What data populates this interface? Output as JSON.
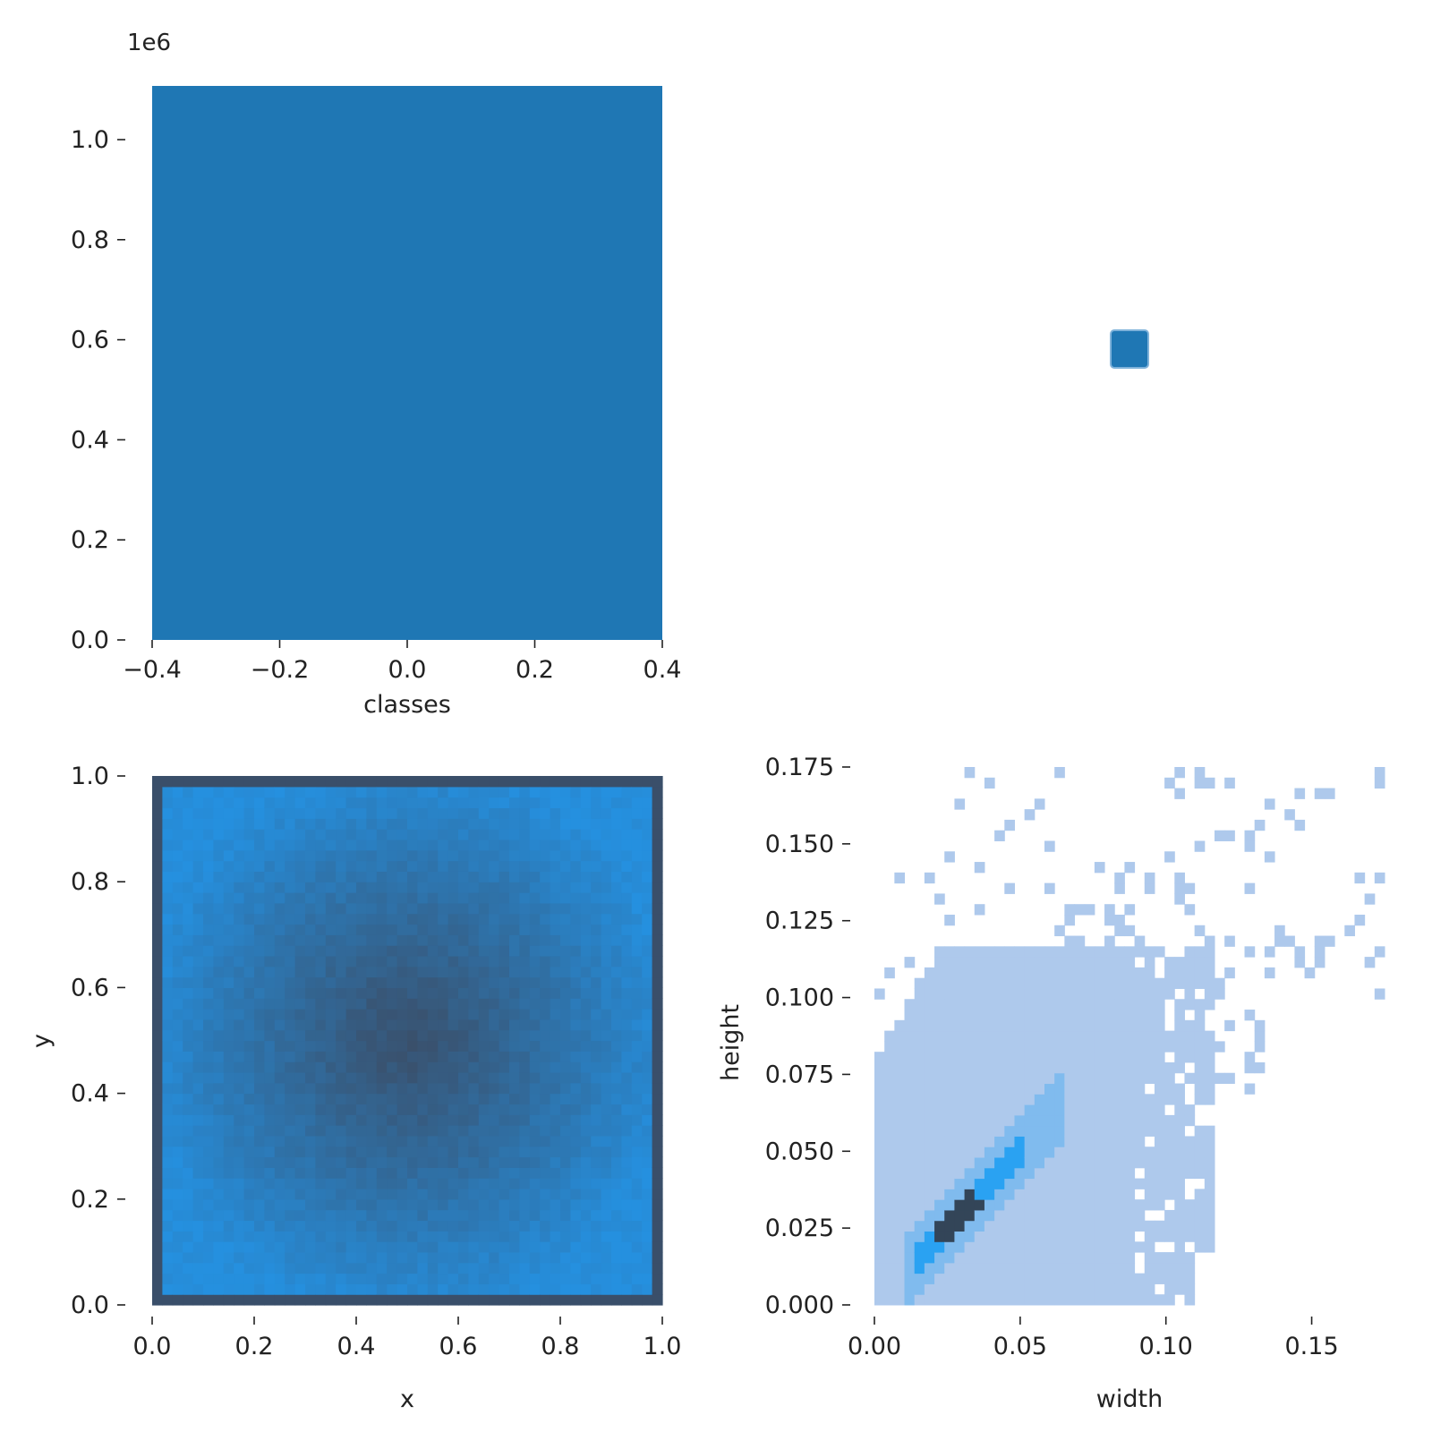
{
  "chart_data": [
    {
      "type": "bar",
      "panel": "top-left",
      "xlabel": "classes",
      "ylabel": "",
      "xlim": [
        -0.4,
        0.4
      ],
      "ylim": [
        0,
        1.1
      ],
      "offset_label": "1e6",
      "categories": [
        0
      ],
      "values": [
        1.1
      ],
      "xticks": [
        "−0.4",
        "−0.2",
        "0.0",
        "0.2",
        "0.4"
      ],
      "yticks": [
        "0.0",
        "0.2",
        "0.4",
        "0.6",
        "0.8",
        "1.0"
      ]
    },
    {
      "type": "scatter",
      "panel": "top-right",
      "xlabel": "",
      "ylabel": "",
      "x": [
        0.5
      ],
      "y": [
        0.5
      ],
      "marker": "square",
      "axes_visible": false
    },
    {
      "type": "heatmap",
      "panel": "bottom-left",
      "xlabel": "x",
      "ylabel": "y",
      "xlim": [
        0,
        1
      ],
      "ylim": [
        0,
        1
      ],
      "xticks": [
        "0.0",
        "0.2",
        "0.4",
        "0.6",
        "0.8",
        "1.0"
      ],
      "yticks": [
        "0.0",
        "0.2",
        "0.4",
        "0.6",
        "0.8",
        "1.0"
      ],
      "bins": 50,
      "pattern": "density highest at centre (0.5, 0.5) and along the borders, lower toward the four quadrants"
    },
    {
      "type": "heatmap",
      "panel": "bottom-right",
      "xlabel": "width",
      "ylabel": "height",
      "xlim": [
        0,
        0.175
      ],
      "ylim": [
        0,
        0.175
      ],
      "xticks": [
        "0.00",
        "0.05",
        "0.10",
        "0.15"
      ],
      "yticks": [
        "0.000",
        "0.025",
        "0.050",
        "0.075",
        "0.100",
        "0.125",
        "0.150",
        "0.175"
      ],
      "peak": {
        "width": 0.028,
        "height": 0.028
      },
      "pattern": "dense diagonal ridge from (0.01, 0.01) to (0.05, 0.05); sparse cells up to width 0.175 and height 0.175"
    }
  ],
  "colors": {
    "bar": "#1f77b4",
    "heat_dark": "#3a4f6a",
    "heat_bright": "#2590df",
    "heat_light": "#aec9ec",
    "heat_mid": "#2aa2f2",
    "heat_peak": "#334558"
  }
}
